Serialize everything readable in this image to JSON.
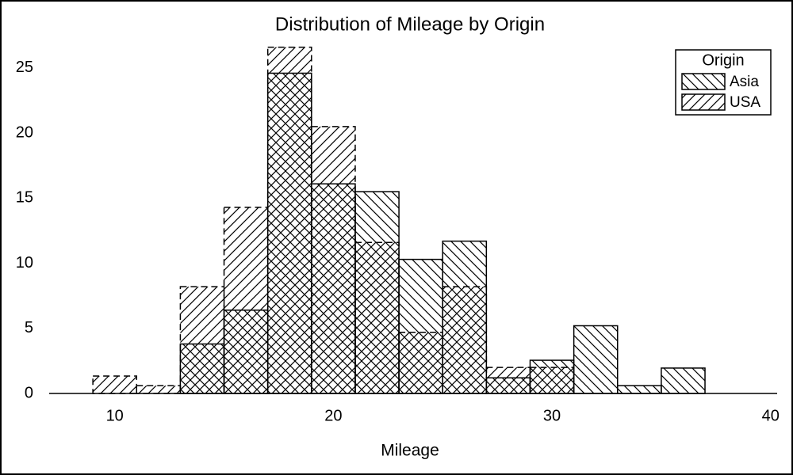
{
  "chart_data": {
    "type": "histogram",
    "title": "Distribution of Mileage by Origin",
    "x_label": "Mileage",
    "legend_title": "Origin",
    "legend_position": "top-right",
    "bins": [
      9,
      11,
      13,
      15,
      17,
      19,
      21,
      23,
      25,
      27,
      29,
      31,
      33,
      35,
      37
    ],
    "series": [
      {
        "name": "Asia",
        "color": "#000000",
        "hatch": "\\",
        "line_style": "solid",
        "values": [
          0,
          0,
          3.8,
          6.4,
          24.6,
          16.1,
          15.5,
          10.3,
          11.7,
          1.2,
          2.55,
          5.2,
          0.6,
          1.95
        ]
      },
      {
        "name": "USA",
        "color": "#000000",
        "hatch": "/",
        "line_style": "dashed",
        "values": [
          1.34,
          0.6,
          8.2,
          14.3,
          26.6,
          20.5,
          11.6,
          4.7,
          8.2,
          2.0,
          2.0,
          0,
          0,
          0
        ]
      }
    ],
    "xlim": [
      7,
      40.3
    ],
    "ylim": [
      0,
      27
    ],
    "xticks": [
      10,
      20,
      30,
      40
    ],
    "yticks": [
      0,
      5,
      10,
      15,
      20,
      25
    ]
  }
}
